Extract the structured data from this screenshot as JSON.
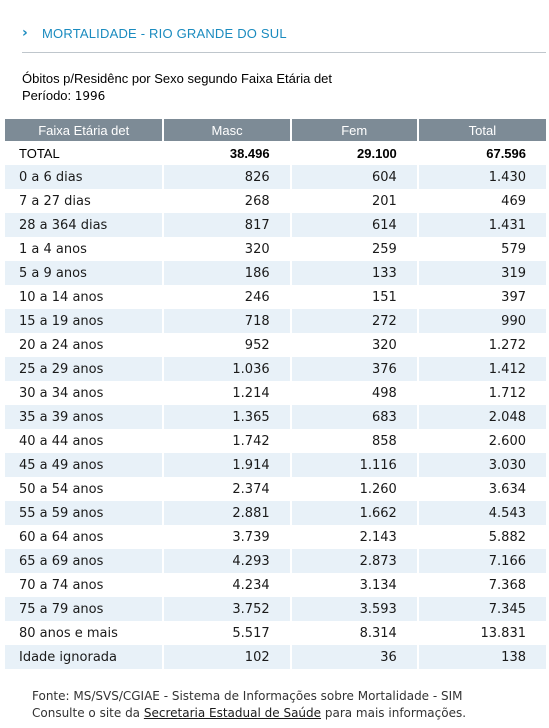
{
  "header": {
    "title": "MORTALIDADE - RIO GRANDE DO SUL"
  },
  "subtitle": {
    "line1": "Óbitos p/Residênc por Sexo segundo Faixa Etária det",
    "period_label": "Período:",
    "period_value": "1996"
  },
  "table": {
    "columns": [
      "Faixa Etária det",
      "Masc",
      "Fem",
      "Total"
    ],
    "total_row": [
      "TOTAL",
      "38.496",
      "29.100",
      "67.596"
    ],
    "rows": [
      [
        "0 a 6 dias",
        "826",
        "604",
        "1.430"
      ],
      [
        "7 a 27 dias",
        "268",
        "201",
        "469"
      ],
      [
        "28 a 364 dias",
        "817",
        "614",
        "1.431"
      ],
      [
        "1 a 4 anos",
        "320",
        "259",
        "579"
      ],
      [
        "5 a 9 anos",
        "186",
        "133",
        "319"
      ],
      [
        "10 a 14 anos",
        "246",
        "151",
        "397"
      ],
      [
        "15 a 19 anos",
        "718",
        "272",
        "990"
      ],
      [
        "20 a 24 anos",
        "952",
        "320",
        "1.272"
      ],
      [
        "25 a 29 anos",
        "1.036",
        "376",
        "1.412"
      ],
      [
        "30 a 34 anos",
        "1.214",
        "498",
        "1.712"
      ],
      [
        "35 a 39 anos",
        "1.365",
        "683",
        "2.048"
      ],
      [
        "40 a 44 anos",
        "1.742",
        "858",
        "2.600"
      ],
      [
        "45 a 49 anos",
        "1.914",
        "1.116",
        "3.030"
      ],
      [
        "50 a 54 anos",
        "2.374",
        "1.260",
        "3.634"
      ],
      [
        "55 a 59 anos",
        "2.881",
        "1.662",
        "4.543"
      ],
      [
        "60 a 64 anos",
        "3.739",
        "2.143",
        "5.882"
      ],
      [
        "65 a 69 anos",
        "4.293",
        "2.873",
        "7.166"
      ],
      [
        "70 a 74 anos",
        "4.234",
        "3.134",
        "7.368"
      ],
      [
        "75 a 79 anos",
        "3.752",
        "3.593",
        "7.345"
      ],
      [
        "80 anos e mais",
        "5.517",
        "8.314",
        "13.831"
      ],
      [
        "Idade ignorada",
        "102",
        "36",
        "138"
      ]
    ]
  },
  "footer": {
    "source": "Fonte: MS/SVS/CGIAE - Sistema de Informações sobre Mortalidade - SIM",
    "consult_prefix": "Consulte o site da",
    "link_text": "Secretaria Estadual de Saúde",
    "consult_suffix": "para mais informações."
  }
}
